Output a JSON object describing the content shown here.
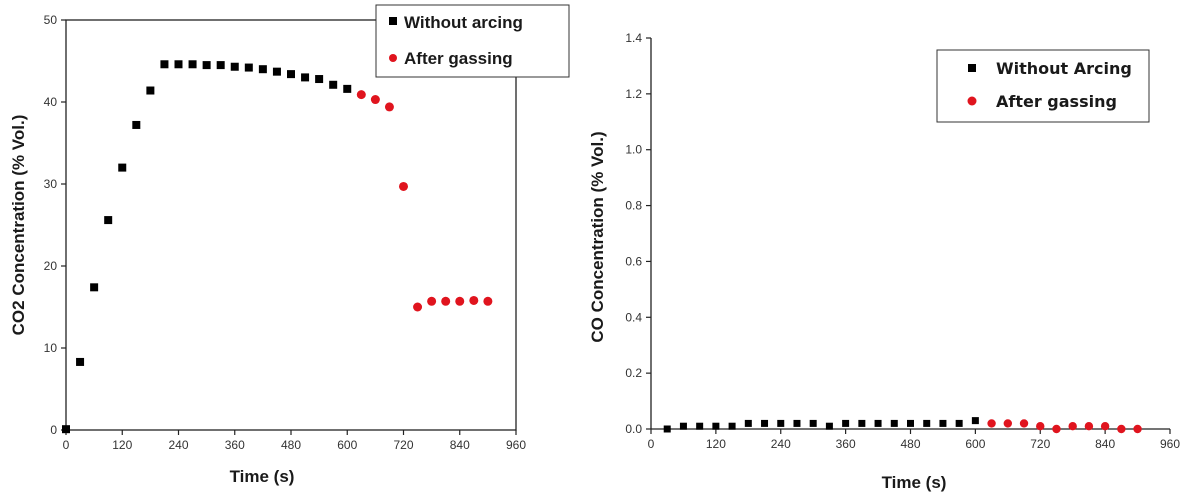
{
  "chart_data": [
    {
      "type": "scatter",
      "xlabel": "Time (s)",
      "ylabel": "CO2 Concentration (% Vol.)",
      "xlim": [
        0,
        960
      ],
      "ylim": [
        0,
        50
      ],
      "xticks": [
        0,
        120,
        240,
        360,
        480,
        600,
        720,
        840,
        960
      ],
      "yticks": [
        0,
        10,
        20,
        30,
        40,
        50
      ],
      "xtick_labels": [
        "0",
        "120",
        "240",
        "360",
        "480",
        "600",
        "720",
        "840",
        "960"
      ],
      "ytick_labels": [
        "0",
        "10",
        "20",
        "30",
        "40",
        "50"
      ],
      "legend_position": "top-right",
      "series": [
        {
          "name": "Without arcing",
          "marker": "square",
          "color": "#000000",
          "x": [
            0,
            30,
            60,
            90,
            120,
            150,
            180,
            210,
            240,
            270,
            300,
            330,
            360,
            390,
            420,
            450,
            480,
            510,
            540,
            570,
            600
          ],
          "y": [
            0.1,
            8.3,
            17.4,
            25.6,
            32.0,
            37.2,
            41.4,
            44.6,
            44.6,
            44.6,
            44.5,
            44.5,
            44.3,
            44.2,
            44.0,
            43.7,
            43.4,
            43.0,
            42.8,
            42.1,
            41.6
          ]
        },
        {
          "name": "After gassing",
          "marker": "circle",
          "color": "#e0141e",
          "x": [
            630,
            660,
            690,
            720,
            750,
            780,
            810,
            840,
            870,
            900
          ],
          "y": [
            40.9,
            40.3,
            39.4,
            29.7,
            15.0,
            15.7,
            15.7,
            15.7,
            15.8,
            15.7
          ]
        }
      ]
    },
    {
      "type": "scatter",
      "xlabel": "Time (s)",
      "ylabel": "CO Concentration (% Vol.)",
      "xlim": [
        0,
        960
      ],
      "ylim": [
        0,
        1.4
      ],
      "xticks": [
        0,
        120,
        240,
        360,
        480,
        600,
        720,
        840,
        960
      ],
      "yticks": [
        0,
        0.2,
        0.4,
        0.6,
        0.8,
        1.0,
        1.2,
        1.4
      ],
      "xtick_labels": [
        "0",
        "120",
        "240",
        "360",
        "480",
        "600",
        "720",
        "840",
        "960"
      ],
      "ytick_labels": [
        "0.0",
        "0.2",
        "0.4",
        "0.6",
        "0.8",
        "1.0",
        "1.2",
        "1.4"
      ],
      "legend_position": "top-right",
      "series": [
        {
          "name": "Without Arcing",
          "marker": "square",
          "color": "#000000",
          "x": [
            30,
            60,
            90,
            120,
            150,
            180,
            210,
            240,
            270,
            300,
            330,
            360,
            390,
            420,
            450,
            480,
            510,
            540,
            570,
            600
          ],
          "y": [
            0.0,
            0.01,
            0.01,
            0.01,
            0.01,
            0.02,
            0.02,
            0.02,
            0.02,
            0.02,
            0.01,
            0.02,
            0.02,
            0.02,
            0.02,
            0.02,
            0.02,
            0.02,
            0.02,
            0.03
          ]
        },
        {
          "name": "After gassing",
          "marker": "circle",
          "color": "#e0141e",
          "x": [
            630,
            660,
            690,
            720,
            750,
            780,
            810,
            840,
            870,
            900
          ],
          "y": [
            0.02,
            0.02,
            0.02,
            0.01,
            0.0,
            0.01,
            0.01,
            0.01,
            0.0,
            0.0
          ]
        }
      ]
    }
  ]
}
